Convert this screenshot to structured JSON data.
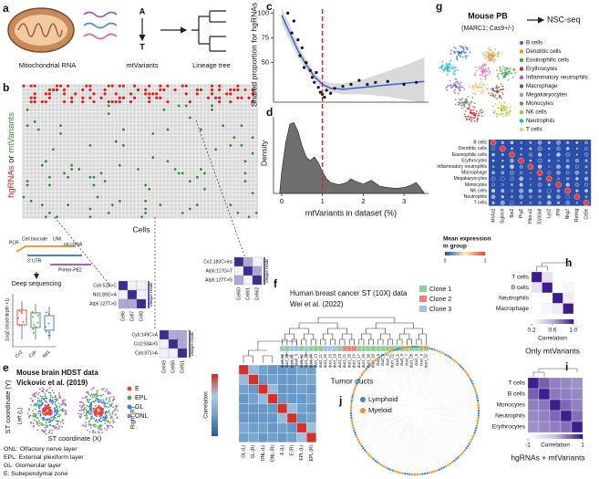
{
  "panel_labels": [
    "a",
    "b",
    "c",
    "d",
    "e",
    "f",
    "g",
    "h",
    "i",
    "j"
  ],
  "a": {
    "mito": "Mitochondrial RNA",
    "base_top": "A",
    "base_bottom": "T",
    "variants": "mtVariants",
    "tree": "Lineage tree"
  },
  "b": {
    "y_label": [
      "hgRNAs",
      " or ",
      "mtVariants"
    ],
    "y_label_colors": [
      "#e0201c",
      "#222222",
      "#2f8f2f"
    ],
    "x_label": "Cells",
    "schematic": {
      "pcr": "PCR",
      "cell_barcode": "Cell barcode",
      "umi": "UMI",
      "cdna": "mt-cDNA",
      "utr": "3' UTR",
      "primer": "Primer-PE2",
      "seq": "Deep sequencing"
    },
    "box": {
      "y_label": "Log2 (read depth +1)",
      "genes": [
        "Co2",
        "Cyb",
        "Nd1"
      ],
      "colors": [
        "#e8504a",
        "#3fa34d",
        "#4a7fd0"
      ]
    },
    "insets": [
      {
        "variants": [
          "Cyb:52A>C",
          "Nd1:89G>A",
          "Atp6:127T>G"
        ],
        "cells": [
          "Cell6",
          "Cell7",
          "Cell8"
        ]
      },
      {
        "variants": [
          "Co2:183C>ins",
          "Atp6:117G>T",
          "Atp6:127T>G"
        ],
        "cells": [
          "Cell60",
          "Cell61",
          "Cell62"
        ]
      },
      {
        "variants": [
          "Cyb:149C>A",
          "Co2:93A>G",
          "Cyb:871>A"
        ],
        "cells": [
          "Cell49",
          "Cell50",
          "Cell51"
        ]
      }
    ],
    "unique_reads": "Unique reads"
  },
  "chart_data": [
    {
      "type": "scatter",
      "y_label": "Shared proportion for hgRNAs",
      "x": [
        0.15,
        0.3,
        0.25,
        0.4,
        0.5,
        0.45,
        0.6,
        0.55,
        0.7,
        0.75,
        0.8,
        0.85,
        0.9,
        0.95,
        1.0,
        1.05,
        1.1,
        1.2,
        1.3,
        1.5,
        1.7,
        1.9,
        2.1,
        2.3,
        2.6,
        3.0,
        3.3
      ],
      "y": [
        100,
        92,
        80,
        73,
        65,
        57,
        50,
        45,
        42,
        35,
        30,
        40,
        25,
        20,
        18,
        15,
        22,
        19,
        24,
        26,
        28,
        32,
        28,
        30,
        31,
        28,
        30
      ],
      "color": "#111111",
      "fit": {
        "x": [
          0,
          0.2,
          0.4,
          0.6,
          0.8,
          1.0,
          1.2,
          1.5,
          2.0,
          2.5,
          3.0,
          3.5
        ],
        "y": [
          98,
          80,
          62,
          48,
          36,
          28,
          24,
          23,
          25,
          27,
          29,
          31
        ],
        "color": "#3b62d6"
      },
      "band": {
        "upper": [
          105,
          88,
          68,
          53,
          40,
          32,
          29,
          29,
          33,
          40,
          47,
          55
        ],
        "lower": [
          90,
          72,
          56,
          43,
          32,
          24,
          20,
          18,
          18,
          16,
          13,
          9
        ],
        "color": "#cfcfcf"
      },
      "threshold": 1,
      "threshold_color": "#e02020",
      "xlim": [
        -0.2,
        3.6
      ],
      "ylim": [
        10,
        104
      ],
      "yticks": [
        50,
        75,
        100
      ]
    },
    {
      "type": "area",
      "y_label": "Density",
      "x_label": "mtVariants in dataset (%)",
      "x": [
        -0.05,
        0,
        0.1,
        0.2,
        0.3,
        0.4,
        0.5,
        0.6,
        0.7,
        0.8,
        0.9,
        1.0,
        1.1,
        1.2,
        1.4,
        1.6,
        1.7,
        1.8,
        2.0,
        2.2,
        2.4,
        2.6,
        2.8,
        3.0,
        3.2,
        3.3,
        3.4,
        3.5
      ],
      "values": [
        0,
        0.3,
        0.7,
        0.95,
        0.97,
        0.85,
        0.65,
        0.5,
        0.45,
        0.5,
        0.42,
        0.3,
        0.2,
        0.15,
        0.12,
        0.15,
        0.2,
        0.17,
        0.13,
        0.18,
        0.1,
        0.08,
        0.07,
        0.08,
        0.12,
        0.15,
        0.08,
        0
      ],
      "color": "#6e6e6e",
      "xlim": [
        -0.2,
        3.6
      ],
      "ylim": [
        0,
        1.05
      ],
      "xticks": [
        0,
        1,
        2,
        3
      ]
    }
  ],
  "e": {
    "title": "Mouse brain HDST data",
    "citation": "Vickovic et al. (2019)",
    "legend": [
      {
        "name": "E",
        "color": "#e8413c"
      },
      {
        "name": "EPL",
        "color": "#4cae4c"
      },
      {
        "name": "GL",
        "color": "#3d7fd6"
      },
      {
        "name": "ONL",
        "color": "#b368d8"
      }
    ],
    "y_label": "ST coordinate (Y)",
    "x_label": "ST coordinate (X)",
    "left": "Left (L)",
    "right": "Right (R)",
    "notes": [
      "ONL: Olfactory nerve layer",
      "EPL: External plexiform layer",
      "GL: Glomerular layer",
      "E: Subependymal zone"
    ],
    "heatmap": {
      "colorbar_label": "Correlation",
      "categories": [
        "GL (L)",
        "GL (R)",
        "ONL (L)",
        "ONL (R)",
        "E (L)",
        "E (R)",
        "EPL (L)",
        "EPL (R)"
      ],
      "clim": [
        0,
        1
      ],
      "colors": [
        "#2c5c9e",
        "#6f9fcb",
        "#a9c9e2",
        "#d73027"
      ],
      "matrix": [
        [
          1,
          0.55,
          0.35,
          0.3,
          0.3,
          0.3,
          0.4,
          0.35
        ],
        [
          0.55,
          1,
          0.3,
          0.35,
          0.3,
          0.3,
          0.35,
          0.4
        ],
        [
          0.35,
          0.3,
          1,
          0.55,
          0.3,
          0.3,
          0.35,
          0.3
        ],
        [
          0.3,
          0.35,
          0.55,
          1,
          0.3,
          0.3,
          0.3,
          0.35
        ],
        [
          0.3,
          0.3,
          0.3,
          0.3,
          1,
          0.55,
          0.35,
          0.3
        ],
        [
          0.3,
          0.3,
          0.3,
          0.3,
          0.55,
          1,
          0.3,
          0.35
        ],
        [
          0.4,
          0.35,
          0.35,
          0.3,
          0.35,
          0.3,
          1,
          0.6
        ],
        [
          0.35,
          0.4,
          0.3,
          0.35,
          0.3,
          0.35,
          0.6,
          1
        ]
      ]
    }
  },
  "f": {
    "title": "Human breast cancer ST (10X) data",
    "citation": "Wei et al. (2022)",
    "clones": [
      {
        "name": "Clone 1",
        "color": "#8fd18f"
      },
      {
        "name": "Clone 2",
        "color": "#f08080"
      },
      {
        "name": "Clone 3",
        "color": "#9ec3f0"
      }
    ],
    "leaves": [
      "duct_26",
      "duct_29",
      "duct_31",
      "duct_3",
      "duct_12",
      "duct_24",
      "duct_14",
      "duct_13",
      "duct_11",
      "duct_25",
      "duct_15",
      "duct_18",
      "duct_23",
      "duct_21",
      "duct_20",
      "duct_19",
      "duct_17",
      "duct_16",
      "duct_30",
      "duct_10",
      "duct_6",
      "duct_8",
      "duct_2",
      "duct_22",
      "duct_1",
      "duct_9",
      "duct_7",
      "duct_28",
      "duct_5",
      "duct_4",
      "duct_32"
    ],
    "leaf_clone": [
      2,
      0,
      2,
      2,
      0,
      2,
      0,
      0,
      0,
      2,
      2,
      2,
      0,
      1,
      1,
      1,
      0,
      0,
      0,
      0,
      0,
      0,
      0,
      0,
      0,
      0,
      0,
      0,
      0,
      0,
      0
    ],
    "x_label": "Tumor ducts"
  },
  "g": {
    "title": "Mouse PB",
    "subtitle": "(MARC1; Cas9+/-)",
    "method": "NSC-seq",
    "cell_types": [
      {
        "name": "B cells",
        "color": "#3b75c4"
      },
      {
        "name": "Dendritic cells",
        "color": "#f28e2b"
      },
      {
        "name": "Eosinophilic cells",
        "color": "#3fa34d"
      },
      {
        "name": "Erythrocytes",
        "color": "#d62728"
      },
      {
        "name": "Inflammatory neutrophils",
        "color": "#9467bd"
      },
      {
        "name": "Macrophage",
        "color": "#8c564b"
      },
      {
        "name": "Megakaryocytes",
        "color": "#e377c2"
      },
      {
        "name": "Monocytes",
        "color": "#7f7f7f"
      },
      {
        "name": "NK cells",
        "color": "#bcbd22"
      },
      {
        "name": "Neutrophils",
        "color": "#17becf"
      },
      {
        "name": "T cells",
        "color": "#ffbb78"
      }
    ],
    "genes": [
      "Ms4a1",
      "Siglech",
      "Bst2",
      "Prg2",
      "Hba-a1",
      "S100a8",
      "Lyz2",
      "Pf4",
      "Nkg7",
      "Retnlg",
      "Cd3e"
    ],
    "legend_title": [
      "Mean expression",
      "in group"
    ],
    "colorbar_ticks": [
      0,
      1
    ]
  },
  "h": {
    "rows": [
      "T cells",
      "B cells",
      "Neutrophils",
      "Macrophage"
    ],
    "matrix": [
      [
        1,
        0.35,
        0.2,
        0.2
      ],
      [
        0.35,
        1,
        0.2,
        0.25
      ],
      [
        0.2,
        0.2,
        1,
        0.3
      ],
      [
        0.2,
        0.25,
        0.3,
        1
      ]
    ],
    "clim": [
      0.2,
      1
    ],
    "colors": [
      "#ffffff",
      "#b9b3dc",
      "#3f1d8f"
    ],
    "colorbar_ticks": [
      0.2,
      0.6,
      {
        "value": 1,
        "label": "1.0"
      }
    ],
    "colorbar_label": "Correlation",
    "caption": "Only mtVariants"
  },
  "i": {
    "rows": [
      "T cells",
      "B cells",
      "Monocytes",
      "Neutrophils",
      "Erythrocytes"
    ],
    "matrix": [
      [
        1,
        0.6,
        0.4,
        0.35,
        0.3
      ],
      [
        0.6,
        1,
        0.45,
        0.4,
        0.35
      ],
      [
        0.4,
        0.45,
        1,
        0.55,
        0.4
      ],
      [
        0.35,
        0.4,
        0.55,
        1,
        0.5
      ],
      [
        0.3,
        0.35,
        0.4,
        0.5,
        1
      ]
    ],
    "clim": [
      -1,
      1
    ],
    "colors": [
      "#ffffff",
      "#c7c1e2",
      "#3f1d8f"
    ],
    "colorbar_ticks": [
      -1,
      1
    ],
    "colorbar_label": "Correlation",
    "caption": "hgRNAs + mtVariants"
  },
  "j": {
    "legend": [
      {
        "name": "Lymphoid",
        "color": "#3b87c8"
      },
      {
        "name": "Myeloid",
        "color": "#f28e2b"
      }
    ]
  }
}
